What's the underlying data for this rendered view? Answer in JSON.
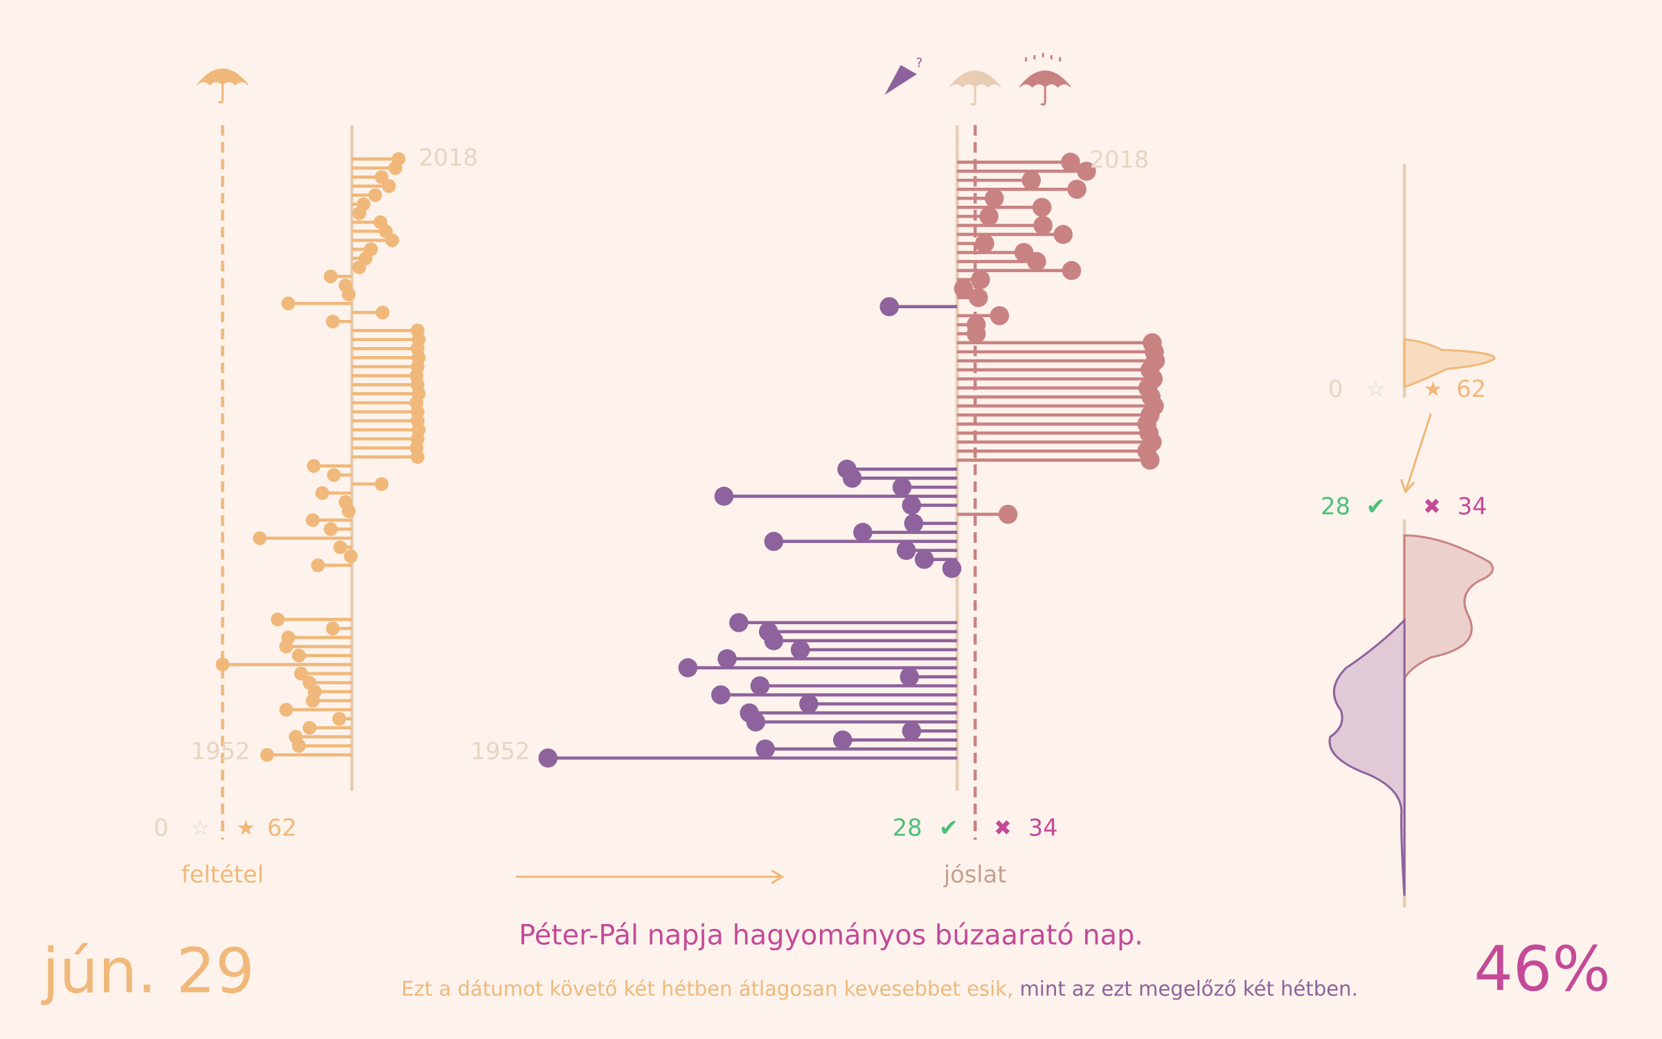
{
  "chart_data": {
    "type": "lollipop",
    "date": "jún. 29",
    "title": "Péter-Pál napja hagyományos búzaarató nap.",
    "subtitle_a": "Ezt a dátumot követő két hétben átlagosan kevesebbet esik,",
    "subtitle_b": "mint az ezt megelőző két hétben.",
    "percent": "46%",
    "first_year": 1952,
    "last_year": 2018,
    "condition_label": "feltétel",
    "prediction_label": "jóslat",
    "zero_count": 0,
    "star_empty": "☆",
    "star_full": "★",
    "star_count": 62,
    "right_count": 28,
    "check": "✔",
    "cross": "✖",
    "wrong_count": 34,
    "condition": {
      "color": "#f0b87a",
      "values": [
        4.4,
        4.1,
        2.8,
        3.5,
        2.2,
        1.1,
        0.7,
        2.7,
        3.2,
        3.8,
        1.8,
        1.3,
        0.7,
        -2.0,
        -0.6,
        -0.3,
        -6.0,
        2.9,
        -1.8,
        6.2,
        6.3,
        6.2,
        6.3,
        6.2,
        6.1,
        6.2,
        6.3,
        6.1,
        6.2,
        6.2,
        6.3,
        6.2,
        6.1,
        6.2,
        -3.6,
        -1.7,
        2.8,
        -2.8,
        -0.6,
        -0.3,
        -3.7,
        -2.0,
        -8.7,
        -1.1,
        -0.1,
        -3.2,
        0,
        0,
        0,
        0,
        0,
        -7.0,
        -1.8,
        -6.0,
        -6.2,
        -5.0,
        -12.2,
        -4.8,
        -4.0,
        -3.5,
        -3.7,
        -6.2,
        -1.2,
        -4.0,
        -5.3,
        -5.0,
        -8.0
      ]
    },
    "prediction": {
      "color_pos": "#c98282",
      "color_neg": "#8e629c",
      "values": [
        10.7,
        12.2,
        7.0,
        11.3,
        3.5,
        8.0,
        3.0,
        8.1,
        10.0,
        2.6,
        6.3,
        7.5,
        10.8,
        2.2,
        0.6,
        2.0,
        -6.4,
        4.0,
        1.8,
        1.8,
        18.4,
        18.6,
        18.7,
        18.2,
        18.5,
        18.0,
        18.3,
        18.6,
        18.2,
        17.9,
        18.1,
        18.4,
        17.9,
        18.2,
        -10.4,
        -9.9,
        -5.2,
        -22.0,
        -4.3,
        4.8,
        -4.1,
        -8.9,
        -17.3,
        -4.8,
        -3.1,
        -0.5,
        0,
        0,
        0,
        0,
        0,
        -20.6,
        -17.8,
        -17.3,
        -14.8,
        -21.7,
        -25.4,
        -4.5,
        -18.6,
        -22.3,
        -14.0,
        -19.6,
        -19.0,
        -4.3,
        -10.8,
        -18.1,
        -38.6
      ]
    }
  }
}
